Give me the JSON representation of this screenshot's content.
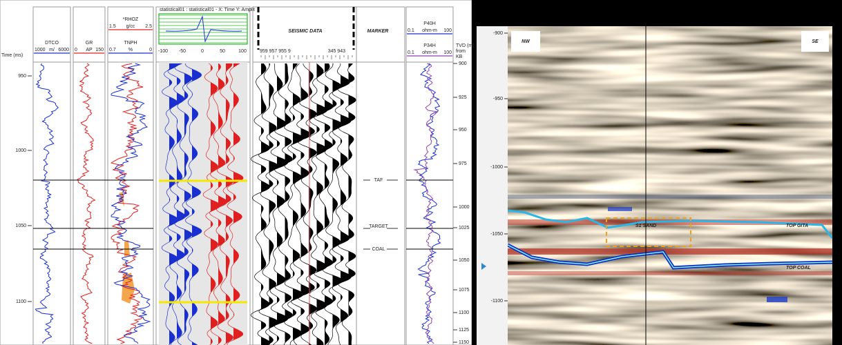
{
  "well_panel": {
    "time_axis": {
      "label": "Time (ms)",
      "ticks": [
        "950",
        "1000",
        "1050",
        "1100"
      ]
    },
    "tracks": [
      {
        "name": "DTCO",
        "scale": [
          "1000",
          "m/",
          "6000"
        ]
      },
      {
        "name": "GR",
        "scale": [
          "0",
          "AP",
          "150"
        ]
      },
      {
        "name": "*RHOZ",
        "scale": [
          "1.5",
          "g/cc",
          "2.5"
        ],
        "name2": "TNPH",
        "scale2": [
          "0.7",
          "%",
          "0"
        ]
      }
    ],
    "statistical": {
      "title": "statistical01 : statistical01 - X: Time Y: Amplit",
      "ticks": [
        "-100",
        "-50",
        "0",
        "50",
        "100"
      ]
    },
    "seismic_header": "SEISMIC DATA",
    "trace_numbers": [
      "959 957 955 9",
      "345 943"
    ],
    "marker_header": "MARKER",
    "markers": [
      "TAF",
      "TARGET",
      "COAL"
    ],
    "resistivity": [
      {
        "name": "P40H",
        "scale": [
          "0.1",
          "ohm-m",
          "100"
        ]
      },
      {
        "name": "P34H",
        "scale": [
          "0.1",
          "ohm-m",
          "100"
        ]
      }
    ],
    "tvd_axis": {
      "label": [
        "TVD (m)",
        "from",
        "KB"
      ],
      "ticks": [
        "900",
        "925",
        "950",
        "975",
        "1000",
        "1025",
        "1050",
        "1075",
        "1100",
        "1125",
        "1150"
      ]
    }
  },
  "seismic_section": {
    "left_label": "NW",
    "right_label": "SE",
    "depth_ticks": [
      "-900",
      "-950",
      "-1000",
      "-1050",
      "-1100"
    ],
    "annotations": [
      "S1 SAND",
      "TOP GITA",
      "TOP COAL"
    ]
  }
}
